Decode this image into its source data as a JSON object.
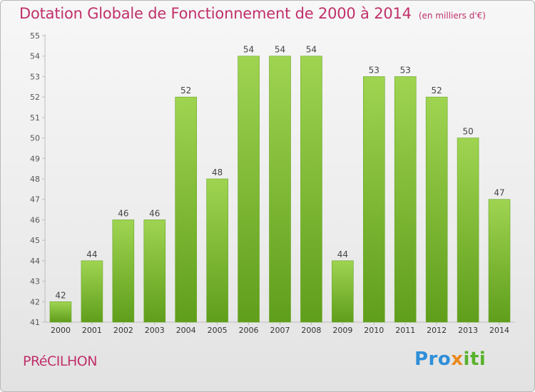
{
  "header": {
    "title": "Dotation Globale de Fonctionnement de 2000 à 2014",
    "unit": "(en milliers d'€)"
  },
  "footer": {
    "place": "PRéCILHON",
    "logo": [
      "Pro",
      "x",
      "iti"
    ]
  },
  "colors": {
    "title": "#c0306a",
    "bar_top": "#9fd451",
    "bar_bottom": "#5f9e1b"
  },
  "chart_data": {
    "type": "bar",
    "title": "Dotation Globale de Fonctionnement de 2000 à 2014",
    "subtitle": "(en milliers d'€)",
    "categories": [
      "2000",
      "2001",
      "2002",
      "2003",
      "2004",
      "2005",
      "2006",
      "2007",
      "2008",
      "2009",
      "2010",
      "2011",
      "2012",
      "2013",
      "2014"
    ],
    "values": [
      42,
      44,
      46,
      46,
      52,
      48,
      54,
      54,
      54,
      44,
      53,
      53,
      52,
      50,
      47
    ],
    "ylim": [
      41,
      55
    ],
    "yticks": [
      41,
      42,
      43,
      44,
      45,
      46,
      47,
      48,
      49,
      50,
      51,
      52,
      53,
      54,
      55
    ],
    "grid": false,
    "legend": "none"
  }
}
